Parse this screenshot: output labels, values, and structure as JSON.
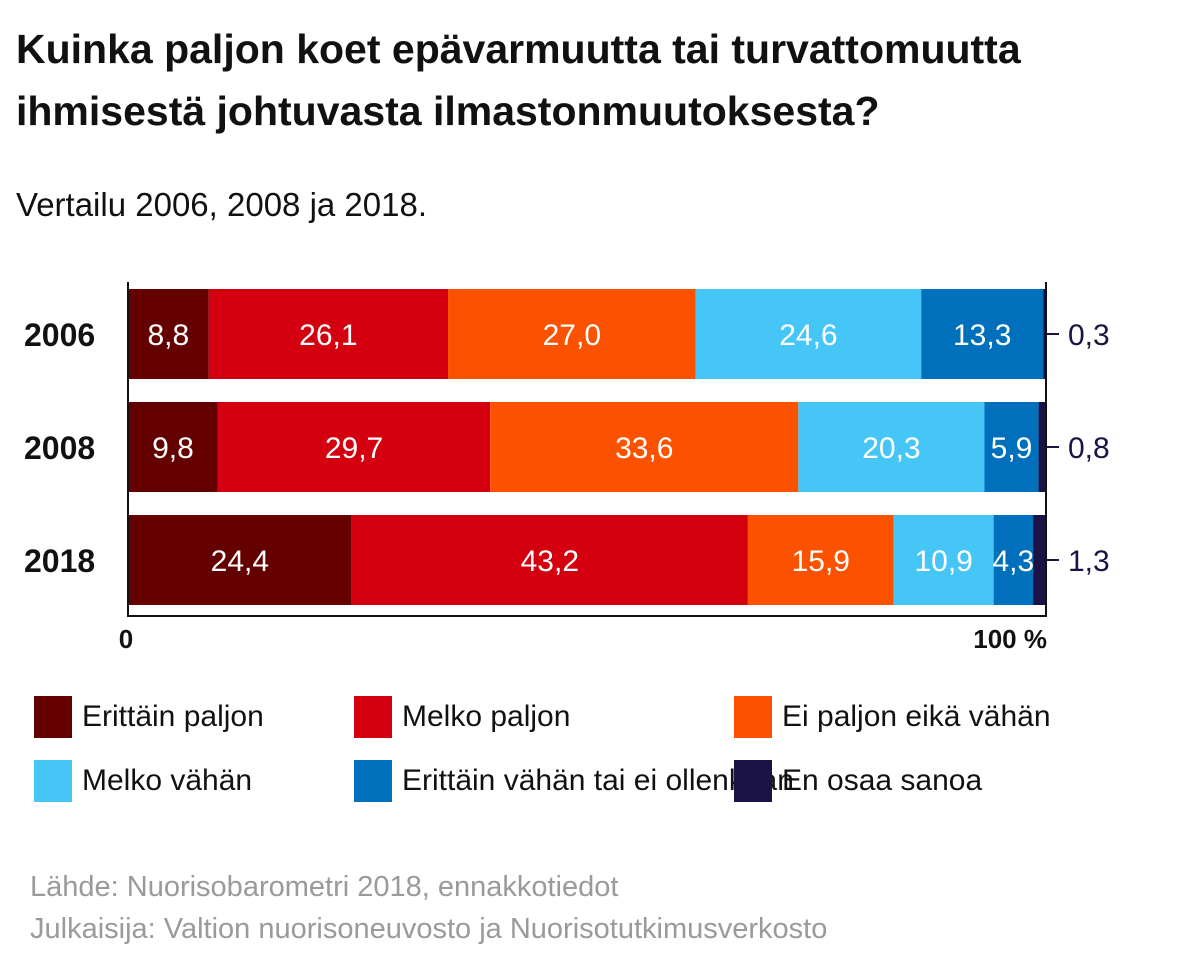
{
  "header": {
    "title_line1": "Kuinka paljon koet epävarmuutta tai turvattomuutta",
    "title_line2": "ihmisestä johtuvasta ilmastonmuutoksesta?",
    "subtitle": "Vertailu 2006, 2008 ja 2018."
  },
  "chart_data": {
    "type": "bar",
    "orientation": "horizontal",
    "stacked": true,
    "title": "Kuinka paljon koet epävarmuutta tai turvattomuutta ihmisestä johtuvasta ilmastonmuutoksesta?",
    "subtitle": "Vertailu 2006, 2008 ja 2018.",
    "categories": [
      "2006",
      "2008",
      "2018"
    ],
    "series": [
      {
        "name": "Erittäin paljon",
        "color": "#650000",
        "values": [
          8.8,
          9.8,
          24.4
        ],
        "labels": [
          "8,8",
          "9,8",
          "24,4"
        ]
      },
      {
        "name": "Melko paljon",
        "color": "#d4000f",
        "values": [
          26.1,
          29.7,
          43.2
        ],
        "labels": [
          "26,1",
          "29,7",
          "43,2"
        ]
      },
      {
        "name": "Ei paljon eikä vähän",
        "color": "#fc5200",
        "values": [
          27.0,
          33.6,
          15.9
        ],
        "labels": [
          "27,0",
          "33,6",
          "15,9"
        ]
      },
      {
        "name": "Melko vähän",
        "color": "#46c6f6",
        "values": [
          24.6,
          20.3,
          10.9
        ],
        "labels": [
          "24,6",
          "20,3",
          "10,9"
        ]
      },
      {
        "name": "Erittäin vähän tai ei ollenkaan",
        "color": "#0070bd",
        "values": [
          13.3,
          5.9,
          4.3
        ],
        "labels": [
          "13,3",
          "5,9",
          "4,3"
        ]
      },
      {
        "name": "En osaa sanoa",
        "color": "#1b1245",
        "values": [
          0.3,
          0.8,
          1.3
        ],
        "labels": [
          "0,3",
          "0,8",
          "1,3"
        ]
      }
    ],
    "xlim": [
      0,
      100
    ],
    "xtick_labels": [
      "0",
      "100 %"
    ],
    "outside_label_series": "En osaa sanoa",
    "outside_label_color": "#1b1245",
    "legend_position": "bottom"
  },
  "footer": {
    "source": "Lähde: Nuorisobarometri 2018, ennakkotiedot",
    "publisher": "Julkaisija: Valtion nuorisoneuvosto ja Nuorisotutkimusverkosto"
  }
}
